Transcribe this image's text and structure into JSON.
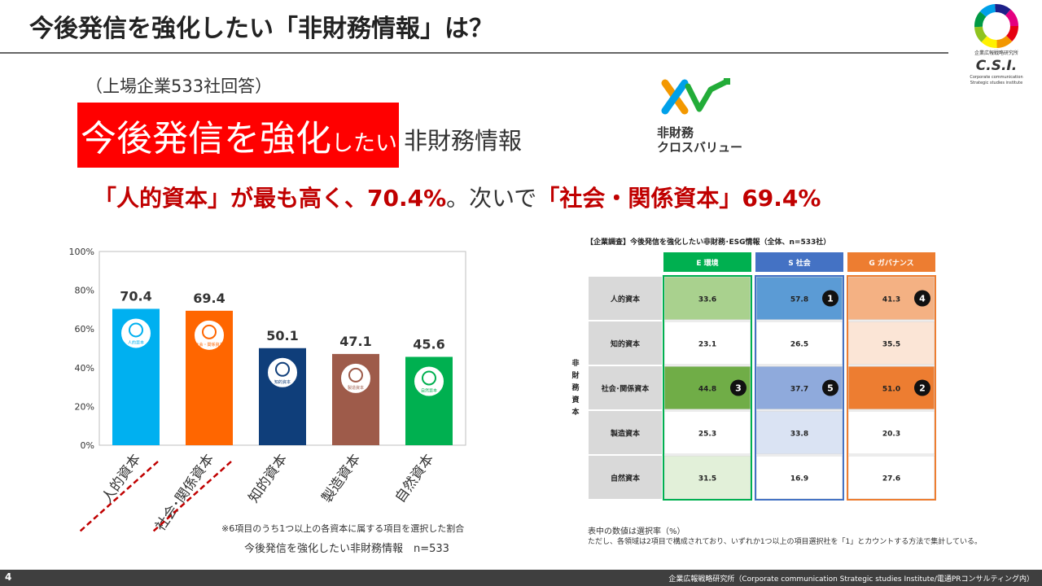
{
  "title": "今後発信を強化したい「非財務情報」は？",
  "logo": {
    "text": "C.S.I.",
    "caption1": "企業広報戦略研究所",
    "caption2": "Corporate communication",
    "caption3": "Strategic studies institute"
  },
  "subtitle_note": "（上場企業533社回答）",
  "headline": {
    "big": "今後発信を強化",
    "small": "したい",
    "rest": "非財務情報"
  },
  "xv_logo": {
    "line1": "非財務",
    "line2": "クロスバリュー"
  },
  "summary": {
    "p1": "「人的資本」が最も高く、70.4%",
    "p2": "。次いで",
    "p3": "「社会・関係資本」69.4%"
  },
  "chart_data": [
    {
      "type": "bar",
      "categories": [
        "人的資本",
        "社会･関係資本",
        "知的資本",
        "製造資本",
        "自然資本"
      ],
      "values": [
        70.4,
        69.4,
        50.1,
        47.1,
        45.6
      ],
      "value_labels": [
        "70.4",
        "69.4",
        "50.1",
        "47.1",
        "45.6"
      ],
      "icon_labels": [
        "人的資本",
        "社会・関係資本",
        "知的資本",
        "製造資本",
        "自然資本"
      ],
      "colors": [
        "#00b0f0",
        "#ff6600",
        "#0f3e7a",
        "#9e5b4a",
        "#00b050"
      ],
      "yticks": [
        "0%",
        "20%",
        "40%",
        "60%",
        "80%",
        "100%"
      ],
      "ylim": [
        0,
        100
      ],
      "grid": false,
      "underlined": [
        0,
        1
      ]
    },
    {
      "type": "heatmap",
      "title": "【企業調査】今後発信を強化したい非財務･ESG情報（全体、n=533社）",
      "columns": [
        "E 環境",
        "S 社会",
        "G ガバナンス"
      ],
      "column_colors": [
        "#00b050",
        "#4472c4",
        "#ed7d31"
      ],
      "rows": [
        "人的資本",
        "知的資本",
        "社会･関係資本",
        "製造資本",
        "自然資本"
      ],
      "row_axis_label": [
        "非",
        "財",
        "務",
        "資",
        "本"
      ],
      "values": [
        [
          33.6,
          57.8,
          41.3
        ],
        [
          23.1,
          26.5,
          35.5
        ],
        [
          44.8,
          37.7,
          51.0
        ],
        [
          25.3,
          33.8,
          20.3
        ],
        [
          31.5,
          16.9,
          27.6
        ]
      ],
      "value_labels": [
        [
          "33.6",
          "57.8",
          "41.3"
        ],
        [
          "23.1",
          "26.5",
          "35.5"
        ],
        [
          "44.8",
          "37.7",
          "51.0"
        ],
        [
          "25.3",
          "33.8",
          "20.3"
        ],
        [
          "31.5",
          "16.9",
          "27.6"
        ]
      ],
      "cell_colors": [
        [
          "#a9d18e",
          "#5b9bd5",
          "#f4b183"
        ],
        [
          "#ffffff",
          "#ffffff",
          "#fbe5d6"
        ],
        [
          "#70ad47",
          "#8faadc",
          "#ed7d31"
        ],
        [
          "#ffffff",
          "#dae3f3",
          "#ffffff"
        ],
        [
          "#e2f0d9",
          "#ffffff",
          "#ffffff"
        ]
      ],
      "ranks": [
        [
          null,
          1,
          4
        ],
        [
          null,
          null,
          null
        ],
        [
          3,
          5,
          2
        ],
        [
          null,
          null,
          null
        ],
        [
          null,
          null,
          null
        ]
      ]
    }
  ],
  "notes": {
    "chart_note1": "※6項目のうち1つ以上の各資本に属する項目を選択した割合",
    "chart_note2": "今後発信を強化したい非財務情報　n=533",
    "table_note1": "表中の数値は選択率（%）",
    "table_note2": "ただし、各領域は2項目で構成されており、いずれか1つ以上の項目選択社を「1」とカウントする方法で集計している。"
  },
  "footer": {
    "page": "4",
    "text": "企業広報戦略研究所（Corporate communication Strategic studies Institute/電通PRコンサルティング内）"
  }
}
